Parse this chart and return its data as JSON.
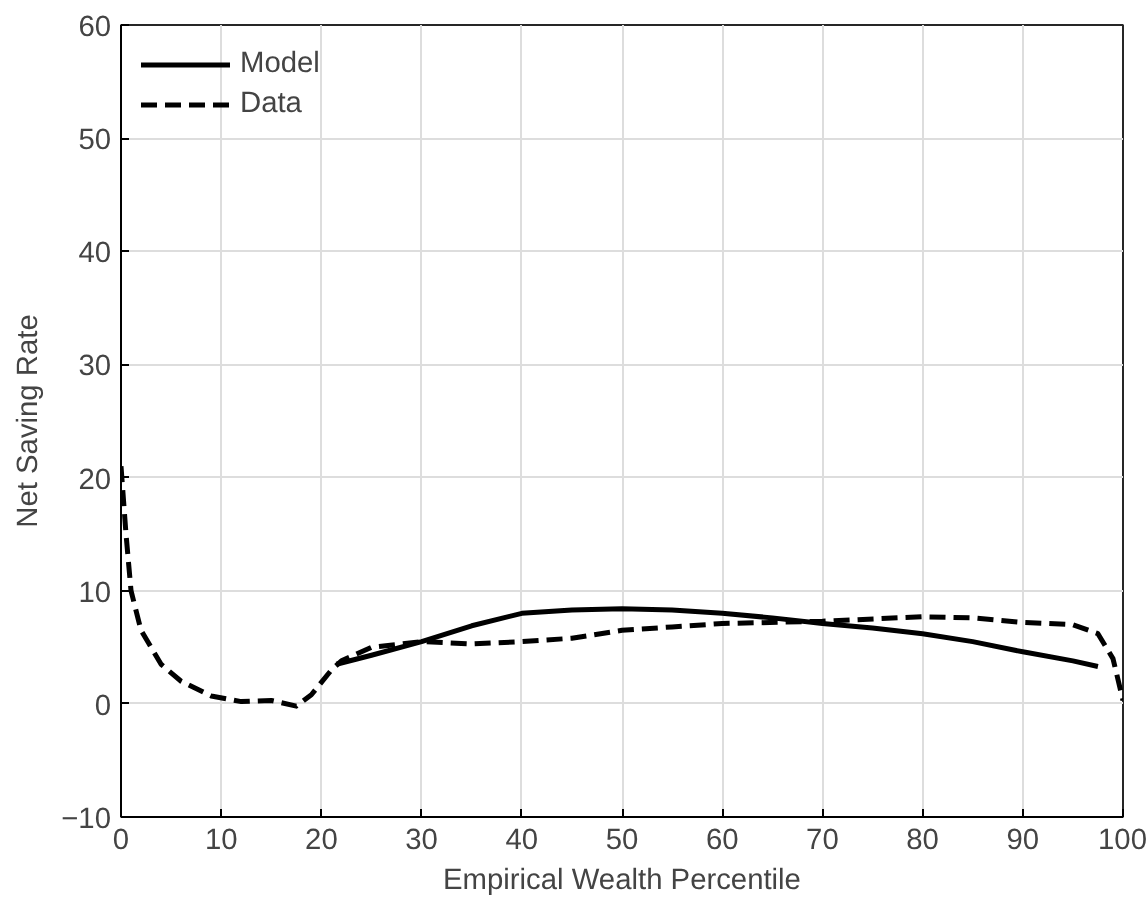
{
  "chart_data": {
    "type": "line",
    "xlabel": "Empirical Wealth Percentile",
    "ylabel": "Net Saving Rate",
    "xlim": [
      0,
      100
    ],
    "ylim": [
      -10,
      60
    ],
    "xticks": [
      0,
      10,
      20,
      30,
      40,
      50,
      60,
      70,
      80,
      90,
      100
    ],
    "yticks": [
      -10,
      0,
      10,
      20,
      30,
      40,
      50,
      60
    ],
    "grid": true,
    "legend": "top left",
    "marker": "none",
    "series": [
      {
        "name": "Model",
        "color": "#000000",
        "line_style": "solid",
        "x": [
          21.5,
          25,
          30,
          35,
          40,
          45,
          50,
          55,
          60,
          65,
          70,
          75,
          80,
          85,
          90,
          95,
          97.5
        ],
        "values": [
          3.5,
          4.3,
          5.5,
          6.9,
          8.0,
          8.3,
          8.4,
          8.3,
          8.0,
          7.6,
          7.1,
          6.7,
          6.2,
          5.5,
          4.6,
          3.8,
          3.3
        ]
      },
      {
        "name": "Data",
        "color": "#000000",
        "line_style": "dashed",
        "x": [
          0,
          0.5,
          1,
          2,
          4,
          6,
          9,
          12,
          15,
          17.5,
          19,
          21,
          22,
          25,
          30,
          35,
          40,
          45,
          50,
          55,
          60,
          70,
          80,
          85,
          90,
          95,
          97.5,
          99,
          100
        ],
        "values": [
          21,
          15,
          10,
          6.5,
          3.5,
          2,
          0.7,
          0.2,
          0.3,
          -0.2,
          0.8,
          3,
          3.8,
          5,
          5.5,
          5.3,
          5.5,
          5.8,
          6.5,
          6.8,
          7.1,
          7.3,
          7.7,
          7.6,
          7.2,
          7.0,
          6.2,
          4,
          0.3
        ]
      }
    ]
  }
}
